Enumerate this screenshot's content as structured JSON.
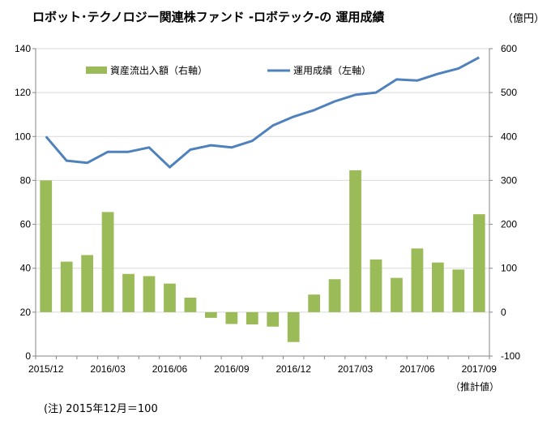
{
  "title": "ロボット･テクノロジー関連株ファンド -ロボテック-の 運用成績",
  "unit_label": "（億円）",
  "note": "(注) 2015年12月＝100",
  "estimate_label": "（推計値）",
  "colors": {
    "bar": "#9bbb59",
    "line": "#4f81bd",
    "grid": "#d9d9d9",
    "axis": "#868686"
  },
  "chart_data": {
    "type": "bar+line",
    "title": "ロボット･テクノロジー関連株ファンド -ロボテック-の 運用成績",
    "months": [
      "2015/12",
      "2016/01",
      "2016/02",
      "2016/03",
      "2016/04",
      "2016/05",
      "2016/06",
      "2016/07",
      "2016/08",
      "2016/09",
      "2016/10",
      "2016/11",
      "2016/12",
      "2017/01",
      "2017/02",
      "2017/03",
      "2017/04",
      "2017/05",
      "2017/06",
      "2017/07",
      "2017/08",
      "2017/09"
    ],
    "x_tick_labels": [
      "2015/12",
      "2016/03",
      "2016/06",
      "2016/09",
      "2016/12",
      "2017/03",
      "2017/06",
      "2017/09"
    ],
    "x_tick_indices": [
      0,
      3,
      6,
      9,
      12,
      15,
      18,
      21
    ],
    "left_axis": {
      "min": 0,
      "max": 140,
      "step": 20,
      "ticks": [
        "0",
        "20",
        "40",
        "60",
        "80",
        "100",
        "120",
        "140"
      ]
    },
    "right_axis": {
      "min": -100,
      "max": 600,
      "step": 100,
      "ticks": [
        "-100",
        "0",
        "100",
        "200",
        "300",
        "400",
        "500",
        "600"
      ]
    },
    "series": [
      {
        "name": "資産流出入額（右軸）",
        "type": "bar",
        "axis": "right",
        "values": [
          300,
          115,
          130,
          228,
          87,
          82,
          65,
          33,
          -13,
          -27,
          -28,
          -33,
          -68,
          40,
          75,
          323,
          120,
          78,
          145,
          113,
          97,
          223
        ]
      },
      {
        "name": "運用成績（左軸）",
        "type": "line",
        "axis": "left",
        "values": [
          100,
          89,
          88,
          93,
          93,
          95,
          86,
          94,
          96,
          95,
          98,
          105,
          109,
          112,
          116,
          119,
          120,
          126,
          125.5,
          128.5,
          131,
          136
        ]
      }
    ]
  }
}
